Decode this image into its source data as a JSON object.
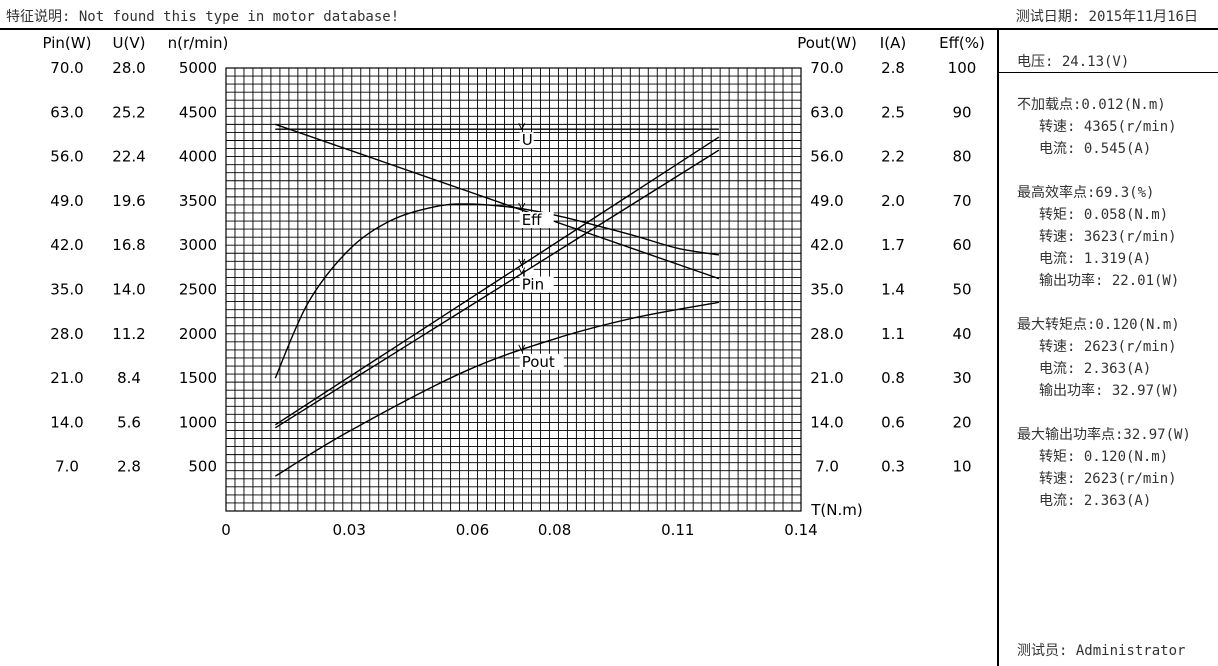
{
  "header": {
    "description": "特征说明: Not found this type in motor database!",
    "test_date": "测试日期: 2015年11月16日"
  },
  "panel": {
    "voltage": "电压:   24.13(V)",
    "groups": [
      {
        "title": "不加载点:0.012(N.m)",
        "lines": [
          "转速: 4365(r/min)",
          "电流: 0.545(A)"
        ]
      },
      {
        "title": "最高效率点:69.3(%)",
        "lines": [
          "转矩: 0.058(N.m)",
          "转速: 3623(r/min)",
          "电流: 1.319(A)",
          "输出功率: 22.01(W)"
        ]
      },
      {
        "title": "最大转矩点:0.120(N.m)",
        "lines": [
          "转速: 2623(r/min)",
          "电流: 2.363(A)",
          "输出功率: 32.97(W)"
        ]
      },
      {
        "title": "最大输出功率点:32.97(W)",
        "lines": [
          "转矩: 0.120(N.m)",
          "转速: 2623(r/min)",
          "电流: 2.363(A)"
        ]
      }
    ],
    "tester": "测试员: Administrator"
  },
  "chart_data": {
    "type": "line",
    "xlabel": "T(N.m)",
    "xlim": [
      0,
      0.14
    ],
    "xticks": [
      0,
      0.03,
      0.06,
      0.08,
      0.11,
      0.14
    ],
    "grid": true,
    "axes": {
      "left": [
        {
          "label": "Pin(W)",
          "ticks": [
            "70.0",
            "63.0",
            "56.0",
            "49.0",
            "42.0",
            "35.0",
            "28.0",
            "21.0",
            "14.0",
            "7.0"
          ]
        },
        {
          "label": "U(V)",
          "ticks": [
            "28.0",
            "25.2",
            "22.4",
            "19.6",
            "16.8",
            "14.0",
            "11.2",
            "8.4",
            "5.6",
            "2.8"
          ]
        },
        {
          "label": "n(r/min)",
          "ticks": [
            "5000",
            "4500",
            "4000",
            "3500",
            "3000",
            "2500",
            "2000",
            "1500",
            "1000",
            "500"
          ]
        }
      ],
      "right": [
        {
          "label": "Pout(W)",
          "ticks": [
            "70.0",
            "63.0",
            "56.0",
            "49.0",
            "42.0",
            "35.0",
            "28.0",
            "21.0",
            "14.0",
            "7.0"
          ]
        },
        {
          "label": "I(A)",
          "ticks": [
            "2.8",
            "2.5",
            "2.2",
            "2.0",
            "1.7",
            "1.4",
            "1.1",
            "0.8",
            "0.6",
            "0.3"
          ]
        },
        {
          "label": "Eff(%)",
          "ticks": [
            "100",
            "90",
            "80",
            "70",
            "60",
            "50",
            "40",
            "30",
            "20",
            "10"
          ]
        }
      ]
    },
    "series": [
      {
        "name": "U",
        "axis": "U(V)",
        "ylim": [
          0,
          28
        ],
        "x": [
          0.012,
          0.12
        ],
        "y": [
          24.13,
          24.13
        ],
        "label_at": 0.072
      },
      {
        "name": "n",
        "axis": "n(r/min)",
        "ylim": [
          0,
          5000
        ],
        "x": [
          0.012,
          0.058,
          0.12
        ],
        "y": [
          4365,
          3623,
          2623
        ]
      },
      {
        "name": "I",
        "axis": "I(A)",
        "ylim": [
          0,
          2.8
        ],
        "x": [
          0.012,
          0.058,
          0.12
        ],
        "y": [
          0.545,
          1.319,
          2.363
        ],
        "label_at": 0.072
      },
      {
        "name": "Pin",
        "axis": "Pin(W)",
        "ylim": [
          0,
          70
        ],
        "x": [
          0.012,
          0.058,
          0.12
        ],
        "y": [
          13.15,
          31.83,
          57.02
        ],
        "label_at": 0.072
      },
      {
        "name": "Pout",
        "axis": "Pout(W)",
        "ylim": [
          0,
          70
        ],
        "x": [
          0.012,
          0.03,
          0.058,
          0.08,
          0.1,
          0.12
        ],
        "y": [
          5.5,
          12.6,
          22.01,
          27.2,
          30.6,
          32.97
        ],
        "label_at": 0.072
      },
      {
        "name": "Eff",
        "axis": "Eff(%)",
        "ylim": [
          0,
          100
        ],
        "x": [
          0.012,
          0.02,
          0.03,
          0.04,
          0.05,
          0.058,
          0.07,
          0.08,
          0.09,
          0.1,
          0.11,
          0.12
        ],
        "y": [
          30,
          47,
          59,
          65.5,
          68.5,
          69.3,
          68.5,
          66.8,
          64.5,
          62,
          59.3,
          57.8
        ],
        "label_at": 0.072
      }
    ]
  }
}
